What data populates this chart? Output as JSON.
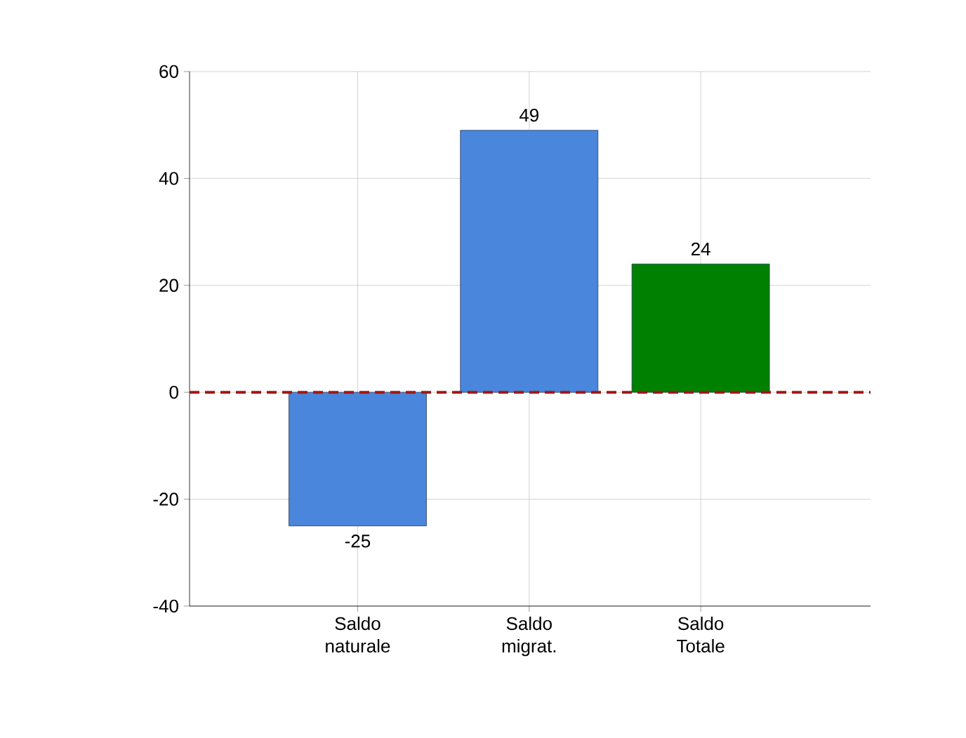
{
  "chart_data": {
    "type": "bar",
    "categories": [
      "Saldo naturale",
      "Saldo migrat.",
      "Saldo Totale"
    ],
    "values": [
      -25,
      49,
      24
    ],
    "colors": [
      "#4a86dc",
      "#4a86dc",
      "#008000"
    ],
    "ylim": [
      -40,
      60
    ],
    "yticks": [
      -40,
      -20,
      0,
      20,
      40,
      60
    ],
    "grid": true,
    "data_labels": true,
    "ref_lines": [
      {
        "axis": "y",
        "value": 0,
        "color": "#a01818",
        "line_style": "dashed"
      }
    ]
  }
}
